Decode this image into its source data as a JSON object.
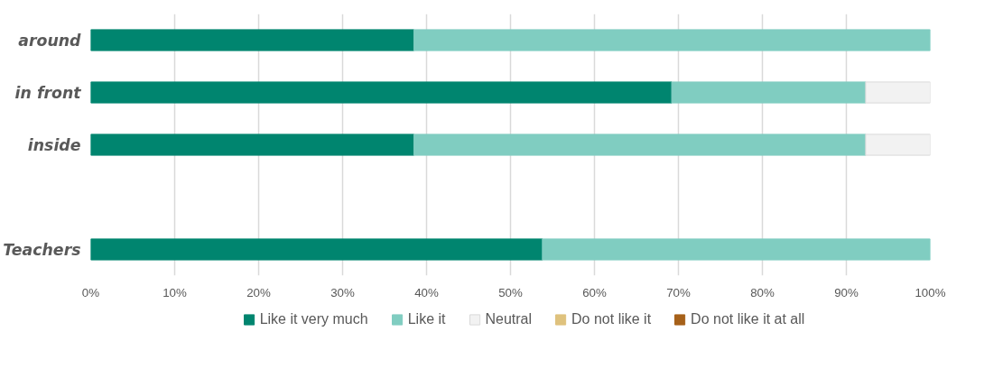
{
  "chart_data": {
    "type": "bar",
    "orientation": "horizontal",
    "stacked": true,
    "categories": [
      "around",
      "in front",
      "inside",
      null,
      "Teachers"
    ],
    "series": [
      {
        "name": "Like it very much",
        "color": "#00856f",
        "values": [
          38.5,
          69.2,
          38.5,
          null,
          53.8
        ]
      },
      {
        "name": "Like it",
        "color": "#80cdc1",
        "values": [
          61.5,
          23.1,
          53.8,
          null,
          46.2
        ]
      },
      {
        "name": "Neutral",
        "color": "#f2f2f2",
        "values": [
          null,
          7.7,
          7.7,
          null,
          null
        ]
      },
      {
        "name": "Do not like it",
        "color": "#dfc27d",
        "values": [
          null,
          null,
          null,
          null,
          null
        ]
      },
      {
        "name": "Do not like it at all",
        "color": "#a6611a",
        "values": [
          null,
          null,
          null,
          null,
          null
        ]
      }
    ],
    "xlim": [
      0,
      100
    ],
    "xticks": [
      {
        "value": 0,
        "label": "0%"
      },
      {
        "value": 10,
        "label": "10%"
      },
      {
        "value": 20,
        "label": "20%"
      },
      {
        "value": 30,
        "label": "30%"
      },
      {
        "value": 40,
        "label": "40%"
      },
      {
        "value": 50,
        "label": "50%"
      },
      {
        "value": 60,
        "label": "60%"
      },
      {
        "value": 70,
        "label": "70%"
      },
      {
        "value": 80,
        "label": "80%"
      },
      {
        "value": 90,
        "label": "90%"
      },
      {
        "value": 100,
        "label": "100%"
      }
    ],
    "grid": "x",
    "legend": "bottom"
  }
}
